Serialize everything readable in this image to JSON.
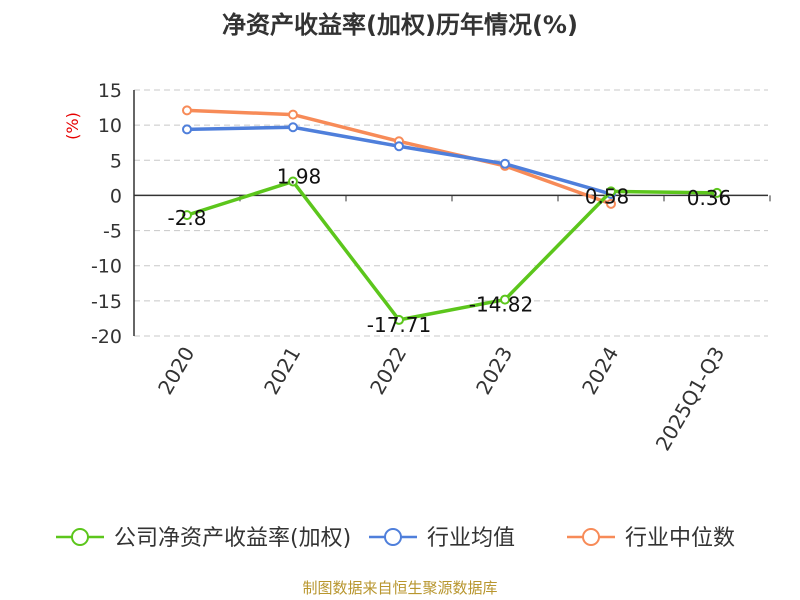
{
  "chart_data": {
    "type": "line",
    "title": "净资产收益率(加权)历年情况(%)",
    "ylabel": "(%)",
    "xlabel": "",
    "categories": [
      "2020",
      "2021",
      "2022",
      "2023",
      "2024",
      "2025Q1-Q3"
    ],
    "ylim": [
      -20,
      15
    ],
    "yticks": [
      15,
      10,
      5,
      0,
      -5,
      -10,
      -15,
      -20
    ],
    "grid": true,
    "legend_position": "bottom",
    "series": [
      {
        "name": "公司净资产收益率(加权)",
        "color": "#5cc61c",
        "values": [
          -2.8,
          1.98,
          -17.71,
          -14.82,
          0.58,
          0.36
        ],
        "labels": [
          "-2.8",
          "1.98",
          "-17.71",
          "-14.82",
          "0.58",
          "0.36"
        ]
      },
      {
        "name": "行业均值",
        "color": "#4f7fdb",
        "values": [
          9.4,
          9.7,
          7.0,
          4.5,
          0.2,
          null
        ]
      },
      {
        "name": "行业中位数",
        "color": "#f78b58",
        "values": [
          12.1,
          11.5,
          7.7,
          4.2,
          -1.2,
          null
        ]
      }
    ]
  },
  "source": "制图数据来自恒生聚源数据库"
}
